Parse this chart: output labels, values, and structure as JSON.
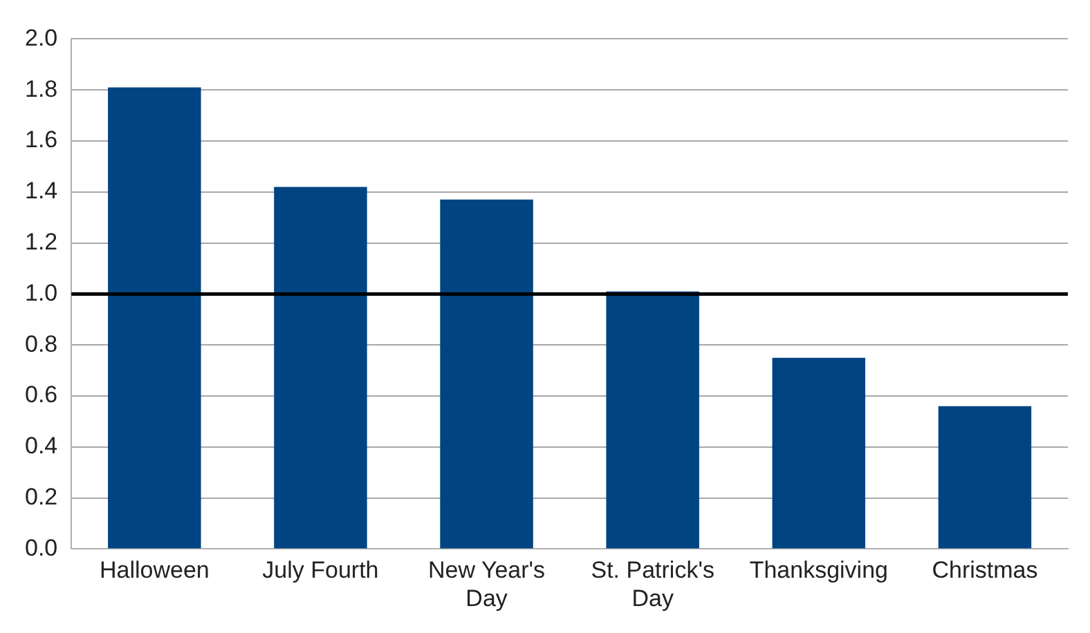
{
  "chart_data": {
    "type": "bar",
    "categories": [
      "Halloween",
      "July Fourth",
      "New Year's Day",
      "St. Patrick's Day",
      "Thanksgiving",
      "Christmas"
    ],
    "values": [
      1.81,
      1.42,
      1.37,
      1.01,
      0.75,
      0.56
    ],
    "color": "#004481",
    "ylim": [
      0,
      2
    ],
    "yticks": [
      {
        "value": 0,
        "label": "0.0"
      },
      {
        "value": 0.2,
        "label": "0.2"
      },
      {
        "value": 0.4,
        "label": "0.4"
      },
      {
        "value": 0.6,
        "label": "0.6"
      },
      {
        "value": 0.8,
        "label": "0.8"
      },
      {
        "value": 1,
        "label": "1.0"
      },
      {
        "value": 1.2,
        "label": "1.2"
      },
      {
        "value": 1.4,
        "label": "1.4"
      },
      {
        "value": 1.6,
        "label": "1.6"
      },
      {
        "value": 1.8,
        "label": "1.8"
      },
      {
        "value": 2,
        "label": "2.0"
      }
    ],
    "grid": "y",
    "legend": false,
    "ref_lines": [
      {
        "axis": "y",
        "value": 1,
        "color": "#000000"
      }
    ]
  }
}
